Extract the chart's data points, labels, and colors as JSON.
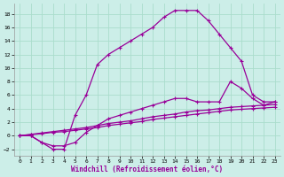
{
  "xlabel": "Windchill (Refroidissement éolien,°C)",
  "background_color": "#cceee8",
  "grid_color": "#aaddcc",
  "line_color": "#990099",
  "xlim": [
    -0.5,
    23.5
  ],
  "ylim": [
    -3,
    19.5
  ],
  "xticks": [
    0,
    1,
    2,
    3,
    4,
    5,
    6,
    7,
    8,
    9,
    10,
    11,
    12,
    13,
    14,
    15,
    16,
    17,
    18,
    19,
    20,
    21,
    22,
    23
  ],
  "yticks": [
    -2,
    0,
    2,
    4,
    6,
    8,
    10,
    12,
    14,
    16,
    18
  ],
  "curve1_x": [
    0,
    1,
    2,
    3,
    4,
    5,
    6,
    7,
    8,
    9,
    10,
    11,
    12,
    13,
    14,
    15,
    16,
    17,
    18,
    19,
    20,
    21,
    22,
    23
  ],
  "curve1_y": [
    0,
    0,
    -1,
    -2,
    -2,
    3,
    6,
    10.5,
    12,
    13,
    14,
    15,
    16,
    17.5,
    18.5,
    18.5,
    18.5,
    17,
    15,
    13,
    11,
    6,
    5,
    5
  ],
  "curve2_x": [
    0,
    1,
    2,
    3,
    4,
    5,
    6,
    7,
    8,
    9,
    10,
    11,
    12,
    13,
    14,
    15,
    16,
    17,
    18,
    19,
    20,
    21,
    22,
    23
  ],
  "curve2_y": [
    0,
    0,
    -1,
    -1.5,
    -1.5,
    -1,
    0.5,
    1.5,
    2.5,
    3,
    3.5,
    4,
    4.5,
    5,
    5.5,
    5.5,
    5,
    5,
    5,
    8,
    7,
    5.5,
    4.5,
    5
  ],
  "curve3_x": [
    0,
    1,
    2,
    3,
    4,
    5,
    6,
    7,
    8,
    9,
    10,
    11,
    12,
    13,
    14,
    15,
    16,
    17,
    18,
    19,
    20,
    21,
    22,
    23
  ],
  "curve3_y": [
    0,
    0.2,
    0.4,
    0.6,
    0.8,
    1.0,
    1.2,
    1.5,
    1.8,
    2.0,
    2.2,
    2.5,
    2.8,
    3.0,
    3.2,
    3.5,
    3.7,
    3.8,
    4.0,
    4.2,
    4.3,
    4.4,
    4.5,
    4.6
  ],
  "curve4_x": [
    0,
    1,
    2,
    3,
    4,
    5,
    6,
    7,
    8,
    9,
    10,
    11,
    12,
    13,
    14,
    15,
    16,
    17,
    18,
    19,
    20,
    21,
    22,
    23
  ],
  "curve4_y": [
    0,
    0.15,
    0.3,
    0.5,
    0.6,
    0.8,
    1.0,
    1.2,
    1.5,
    1.7,
    1.9,
    2.1,
    2.4,
    2.6,
    2.8,
    3.0,
    3.2,
    3.4,
    3.6,
    3.8,
    3.9,
    4.0,
    4.1,
    4.2
  ]
}
